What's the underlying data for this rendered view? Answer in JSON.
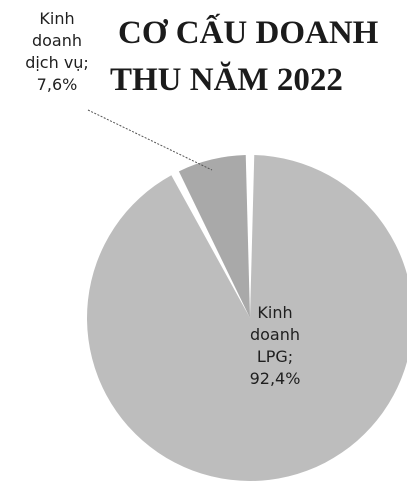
{
  "chart_data": {
    "type": "pie",
    "title_lines": [
      "CƠ CẤU DOANH",
      "THU NĂM 2022"
    ],
    "slices": [
      {
        "name": "Kinh doanh LPG",
        "value": 92.4,
        "label_lines": [
          "Kinh",
          "doanh",
          "LPG;",
          "92,4%"
        ],
        "color": "#bdbdbd"
      },
      {
        "name": "Kinh doanh dịch vụ",
        "value": 7.6,
        "label_lines": [
          "Kinh",
          "doanh",
          "dịch vụ;",
          "7,6%"
        ],
        "color": "#a9a9a9"
      }
    ],
    "legend": "none"
  }
}
